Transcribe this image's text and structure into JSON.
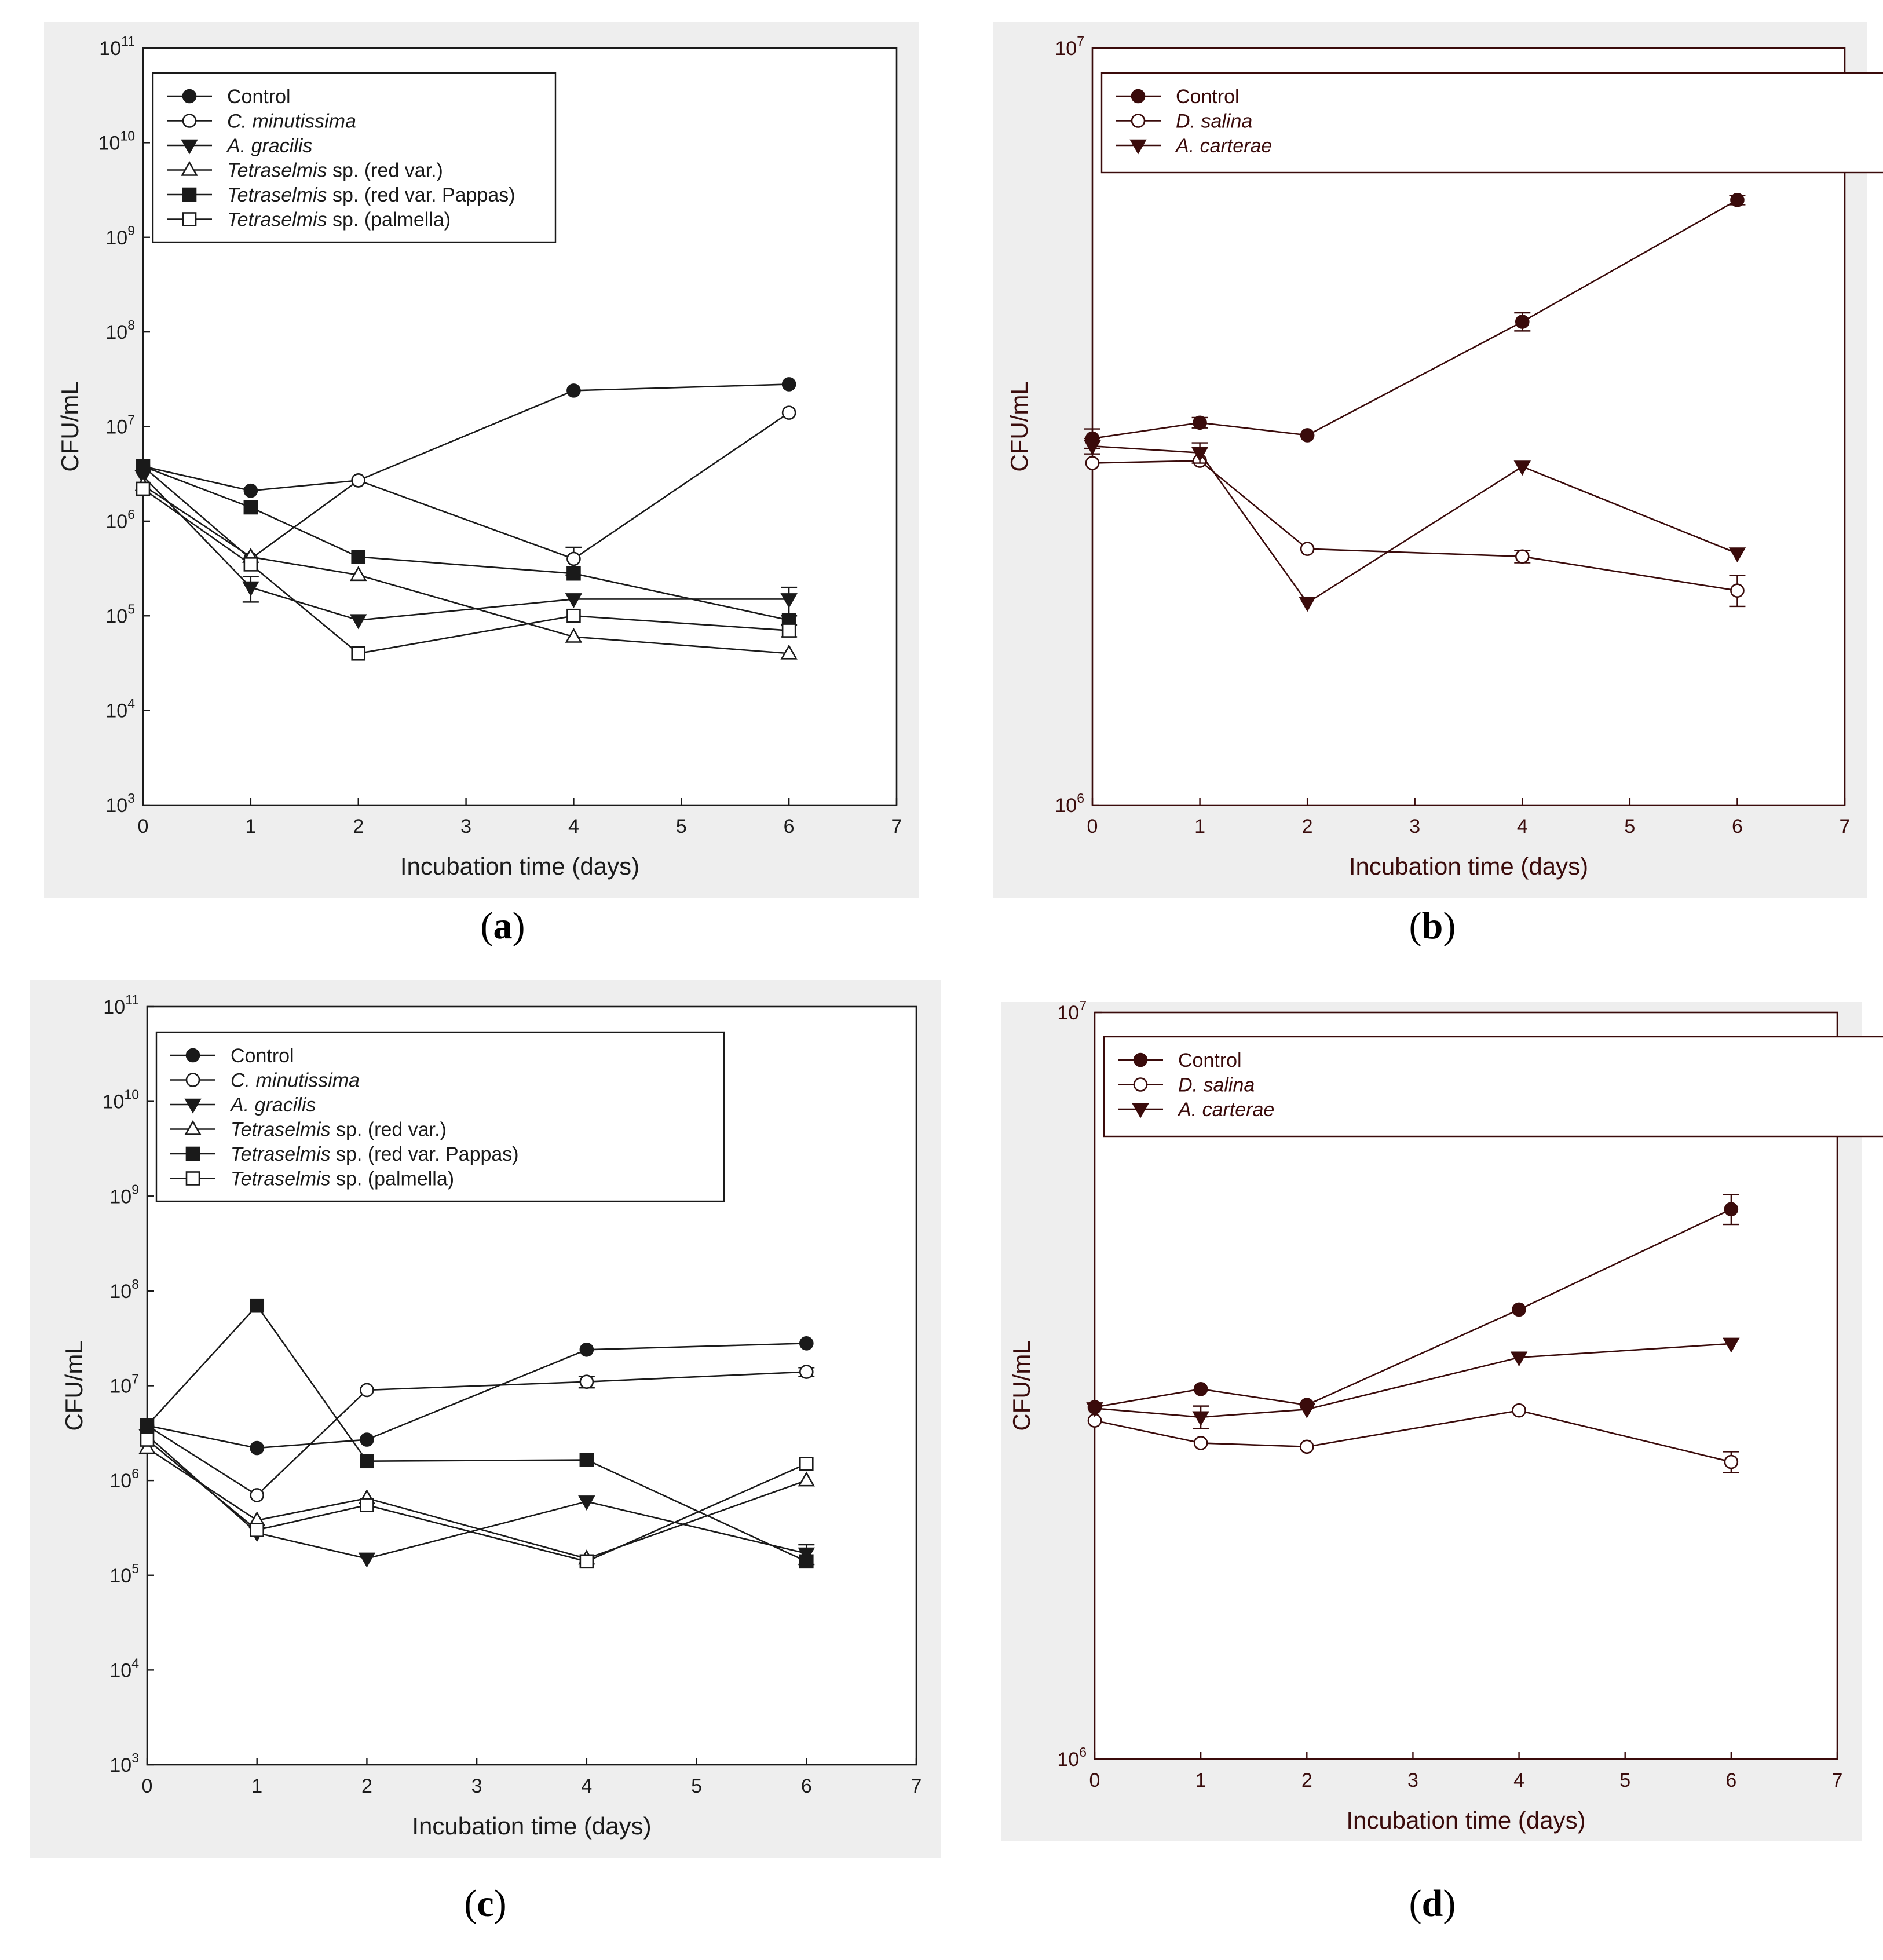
{
  "chart_data": [
    {
      "type": "line",
      "panel_label": "a",
      "xlabel": "Incubation time (days)",
      "ylabel": "CFU/mL",
      "xlim": [
        0,
        7
      ],
      "xticks": [
        0,
        1,
        2,
        3,
        4,
        5,
        6,
        7
      ],
      "ylim": [
        1000,
        100000000000
      ],
      "yscale": "log",
      "yticks": [
        {
          "base": "10",
          "exp": "3",
          "value": 1000
        },
        {
          "base": "10",
          "exp": "4",
          "value": 10000
        },
        {
          "base": "10",
          "exp": "5",
          "value": 100000
        },
        {
          "base": "10",
          "exp": "6",
          "value": 1000000
        },
        {
          "base": "10",
          "exp": "7",
          "value": 10000000
        },
        {
          "base": "10",
          "exp": "8",
          "value": 100000000
        },
        {
          "base": "10",
          "exp": "9",
          "value": 1000000000
        },
        {
          "base": "10",
          "exp": "10",
          "value": 10000000000
        },
        {
          "base": "10",
          "exp": "11",
          "value": 100000000000
        }
      ],
      "line_color": "#1a1a1a",
      "legend_position": "top-left",
      "x": [
        0,
        1,
        2,
        4,
        6
      ],
      "series": [
        {
          "name": "Control",
          "italic": "",
          "suffix": "",
          "marker": "circle-filled",
          "values": [
            3800000,
            2100000,
            2700000,
            24000000,
            28000000
          ],
          "err": [
            0,
            0,
            0,
            0,
            0
          ]
        },
        {
          "name": "C. minutissima",
          "italic": "C. minutissima",
          "suffix": "",
          "marker": "circle-open",
          "values": [
            3800000,
            400000,
            2700000,
            400000,
            14000000
          ],
          "err": [
            0,
            0,
            0,
            130000,
            0
          ]
        },
        {
          "name": "A. gracilis",
          "italic": "A. gracilis",
          "suffix": "",
          "marker": "triangle-down-filled",
          "values": [
            3000000,
            200000,
            90000,
            150000,
            150000
          ],
          "err": [
            0,
            60000,
            0,
            0,
            50000
          ]
        },
        {
          "name": "Tetraselmis sp. (red var.)",
          "italic": "Tetraselmis",
          "suffix": " sp. (red var.)",
          "marker": "triangle-up-open",
          "values": [
            2400000,
            420000,
            270000,
            60000,
            40000
          ],
          "err": [
            0,
            0,
            0,
            0,
            0
          ]
        },
        {
          "name": "Tetraselmis sp. (red var. Pappas)",
          "italic": "Tetraselmis",
          "suffix": " sp. (red var. Pappas)",
          "marker": "square-filled",
          "values": [
            3800000,
            1400000,
            420000,
            280000,
            90000
          ],
          "err": [
            0,
            0,
            0,
            0,
            0
          ]
        },
        {
          "name": "Tetraselmis sp. (palmella)",
          "italic": "Tetraselmis",
          "suffix": " sp. (palmella)",
          "marker": "square-open",
          "values": [
            2200000,
            350000,
            40000,
            100000,
            70000
          ],
          "err": [
            0,
            0,
            0,
            0,
            10000
          ]
        }
      ]
    },
    {
      "type": "line",
      "panel_label": "b",
      "xlabel": "Incubation time (days)",
      "ylabel": "CFU/mL",
      "xlim": [
        0,
        7
      ],
      "xticks": [
        0,
        1,
        2,
        3,
        4,
        5,
        6,
        7
      ],
      "ylim": [
        1000000,
        10000000
      ],
      "yscale": "log",
      "yticks": [
        {
          "base": "10",
          "exp": "6",
          "value": 1000000
        },
        {
          "base": "10",
          "exp": "7",
          "value": 10000000
        }
      ],
      "line_color": "#3a0b0b",
      "legend_position": "top-left",
      "x": [
        0,
        1,
        2,
        4,
        6
      ],
      "series": [
        {
          "name": "Control",
          "italic": "",
          "suffix": "",
          "marker": "circle-filled",
          "values": [
            3050000,
            3200000,
            3080000,
            4350000,
            6300000
          ],
          "err": [
            90000,
            50000,
            0,
            120000,
            90000
          ]
        },
        {
          "name": "D. salina",
          "italic": "D. salina",
          "suffix": "",
          "marker": "circle-open",
          "values": [
            2830000,
            2850000,
            2180000,
            2130000,
            1920000
          ],
          "err": [
            0,
            0,
            0,
            40000,
            90000
          ]
        },
        {
          "name": "A. carterae",
          "italic": "A. carterae",
          "suffix": "",
          "marker": "triangle-down-filled",
          "values": [
            2980000,
            2920000,
            1850000,
            2800000,
            2150000
          ],
          "err": [
            70000,
            90000,
            0,
            0,
            0
          ]
        }
      ]
    },
    {
      "type": "line",
      "panel_label": "c",
      "xlabel": "Incubation time (days)",
      "ylabel": "CFU/mL",
      "xlim": [
        0,
        7
      ],
      "xticks": [
        0,
        1,
        2,
        3,
        4,
        5,
        6,
        7
      ],
      "ylim": [
        1000,
        100000000000
      ],
      "yscale": "log",
      "yticks": [
        {
          "base": "10",
          "exp": "3",
          "value": 1000
        },
        {
          "base": "10",
          "exp": "4",
          "value": 10000
        },
        {
          "base": "10",
          "exp": "5",
          "value": 100000
        },
        {
          "base": "10",
          "exp": "6",
          "value": 1000000
        },
        {
          "base": "10",
          "exp": "7",
          "value": 10000000
        },
        {
          "base": "10",
          "exp": "8",
          "value": 100000000
        },
        {
          "base": "10",
          "exp": "9",
          "value": 1000000000
        },
        {
          "base": "10",
          "exp": "10",
          "value": 10000000000
        },
        {
          "base": "10",
          "exp": "11",
          "value": 100000000000
        }
      ],
      "line_color": "#1a1a1a",
      "legend_position": "top-left",
      "x": [
        0,
        1,
        2,
        4,
        6
      ],
      "series": [
        {
          "name": "Control",
          "italic": "",
          "suffix": "",
          "marker": "circle-filled",
          "values": [
            3800000,
            2200000,
            2700000,
            24000000,
            28000000
          ],
          "err": [
            0,
            0,
            0,
            0,
            0
          ]
        },
        {
          "name": "C. minutissima",
          "italic": "C. minutissima",
          "suffix": "",
          "marker": "circle-open",
          "values": [
            3800000,
            700000,
            9000000,
            11000000,
            14000000
          ],
          "err": [
            0,
            0,
            0,
            1500000,
            1500000
          ]
        },
        {
          "name": "A. gracilis",
          "italic": "A. gracilis",
          "suffix": "",
          "marker": "triangle-down-filled",
          "values": [
            3000000,
            280000,
            150000,
            600000,
            170000
          ],
          "err": [
            0,
            0,
            0,
            0,
            40000
          ]
        },
        {
          "name": "Tetraselmis sp. (red var.)",
          "italic": "Tetraselmis",
          "suffix": " sp. (red var.)",
          "marker": "triangle-up-open",
          "values": [
            2200000,
            380000,
            650000,
            150000,
            1000000
          ],
          "err": [
            0,
            0,
            0,
            0,
            0
          ]
        },
        {
          "name": "Tetraselmis sp. (red var. Pappas)",
          "italic": "Tetraselmis",
          "suffix": " sp. (red var. Pappas)",
          "marker": "square-filled",
          "values": [
            3800000,
            70000000,
            1600000,
            1650000,
            140000
          ],
          "err": [
            0,
            0,
            0,
            0,
            0
          ]
        },
        {
          "name": "Tetraselmis sp. (palmella)",
          "italic": "Tetraselmis",
          "suffix": " sp. (palmella)",
          "marker": "square-open",
          "values": [
            2700000,
            300000,
            550000,
            140000,
            1500000
          ],
          "err": [
            0,
            0,
            0,
            0,
            0
          ]
        }
      ]
    },
    {
      "type": "line",
      "panel_label": "d",
      "xlabel": "Incubation time (days)",
      "ylabel": "CFU/mL",
      "xlim": [
        0,
        7
      ],
      "xticks": [
        0,
        1,
        2,
        3,
        4,
        5,
        6,
        7
      ],
      "ylim": [
        1000000,
        10000000
      ],
      "yscale": "log",
      "yticks": [
        {
          "base": "10",
          "exp": "6",
          "value": 1000000
        },
        {
          "base": "10",
          "exp": "7",
          "value": 10000000
        }
      ],
      "line_color": "#3a0b0b",
      "legend_position": "top-left",
      "x": [
        0,
        1,
        2,
        4,
        6
      ],
      "series": [
        {
          "name": "Control",
          "italic": "",
          "suffix": "",
          "marker": "circle-filled",
          "values": [
            2960000,
            3130000,
            2980000,
            4000000,
            5450000
          ],
          "err": [
            0,
            0,
            0,
            0,
            250000
          ]
        },
        {
          "name": "D. salina",
          "italic": "D. salina",
          "suffix": "",
          "marker": "circle-open",
          "values": [
            2840000,
            2650000,
            2620000,
            2930000,
            2500000
          ],
          "err": [
            0,
            0,
            0,
            0,
            80000
          ]
        },
        {
          "name": "A. carterae",
          "italic": "A. carterae",
          "suffix": "",
          "marker": "triangle-down-filled",
          "values": [
            2950000,
            2870000,
            2940000,
            3450000,
            3600000
          ],
          "err": [
            0,
            100000,
            0,
            0,
            0
          ]
        }
      ]
    }
  ]
}
